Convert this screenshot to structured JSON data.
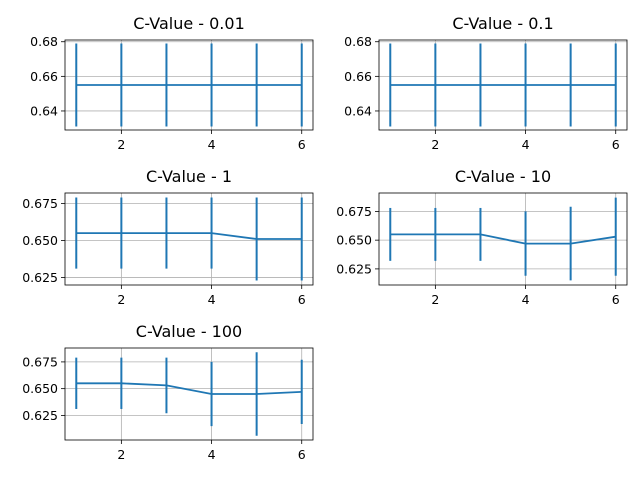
{
  "chart_data": [
    {
      "type": "line",
      "title": "C-Value - 0.01",
      "xlabel": "",
      "ylabel": "",
      "x": [
        1,
        2,
        3,
        4,
        5,
        6
      ],
      "series": [
        {
          "values": [
            0.655,
            0.655,
            0.655,
            0.655,
            0.655,
            0.655
          ],
          "error": [
            0.024,
            0.024,
            0.024,
            0.024,
            0.024,
            0.024
          ]
        }
      ],
      "xlim": [
        0.75,
        6.25
      ],
      "ylim": [
        0.629,
        0.681
      ],
      "xticks": [
        2,
        4,
        6
      ],
      "yticks": [
        0.64,
        0.66,
        0.68
      ],
      "xtick_labels": [
        "2",
        "4",
        "6"
      ],
      "ytick_labels": [
        "0.64",
        "0.66",
        "0.68"
      ],
      "grid": true,
      "color": "#1f77b4"
    },
    {
      "type": "line",
      "title": "C-Value - 0.1",
      "xlabel": "",
      "ylabel": "",
      "x": [
        1,
        2,
        3,
        4,
        5,
        6
      ],
      "series": [
        {
          "values": [
            0.655,
            0.655,
            0.655,
            0.655,
            0.655,
            0.655
          ],
          "error": [
            0.024,
            0.024,
            0.024,
            0.024,
            0.024,
            0.024
          ]
        }
      ],
      "xlim": [
        0.75,
        6.25
      ],
      "ylim": [
        0.629,
        0.681
      ],
      "xticks": [
        2,
        4,
        6
      ],
      "yticks": [
        0.64,
        0.66,
        0.68
      ],
      "xtick_labels": [
        "2",
        "4",
        "6"
      ],
      "ytick_labels": [
        "0.64",
        "0.66",
        "0.68"
      ],
      "grid": true,
      "color": "#1f77b4"
    },
    {
      "type": "line",
      "title": "C-Value - 1",
      "xlabel": "",
      "ylabel": "",
      "x": [
        1,
        2,
        3,
        4,
        5,
        6
      ],
      "series": [
        {
          "values": [
            0.655,
            0.655,
            0.655,
            0.655,
            0.651,
            0.651
          ],
          "error": [
            0.024,
            0.024,
            0.024,
            0.024,
            0.028,
            0.028
          ]
        }
      ],
      "xlim": [
        0.75,
        6.25
      ],
      "ylim": [
        0.62,
        0.682
      ],
      "xticks": [
        2,
        4,
        6
      ],
      "yticks": [
        0.625,
        0.65,
        0.675
      ],
      "xtick_labels": [
        "2",
        "4",
        "6"
      ],
      "ytick_labels": [
        "0.625",
        "0.650",
        "0.675"
      ],
      "grid": true,
      "color": "#1f77b4"
    },
    {
      "type": "line",
      "title": "C-Value - 10",
      "xlabel": "",
      "ylabel": "",
      "x": [
        1,
        2,
        3,
        4,
        5,
        6
      ],
      "series": [
        {
          "values": [
            0.655,
            0.655,
            0.655,
            0.647,
            0.647,
            0.653
          ],
          "error": [
            0.023,
            0.023,
            0.023,
            0.028,
            0.032,
            0.034
          ]
        }
      ],
      "xlim": [
        0.75,
        6.25
      ],
      "ylim": [
        0.611,
        0.691
      ],
      "xticks": [
        2,
        4,
        6
      ],
      "yticks": [
        0.625,
        0.65,
        0.675
      ],
      "xtick_labels": [
        "2",
        "4",
        "6"
      ],
      "ytick_labels": [
        "0.625",
        "0.650",
        "0.675"
      ],
      "grid": true,
      "color": "#1f77b4"
    },
    {
      "type": "line",
      "title": "C-Value - 100",
      "xlabel": "",
      "ylabel": "",
      "x": [
        1,
        2,
        3,
        4,
        5,
        6
      ],
      "series": [
        {
          "values": [
            0.655,
            0.655,
            0.653,
            0.645,
            0.645,
            0.647
          ],
          "error": [
            0.024,
            0.024,
            0.026,
            0.03,
            0.039,
            0.03
          ]
        }
      ],
      "xlim": [
        0.75,
        6.25
      ],
      "ylim": [
        0.602,
        0.688
      ],
      "xticks": [
        2,
        4,
        6
      ],
      "yticks": [
        0.625,
        0.65,
        0.675
      ],
      "xtick_labels": [
        "2",
        "4",
        "6"
      ],
      "ytick_labels": [
        "0.625",
        "0.650",
        "0.675"
      ],
      "grid": true,
      "color": "#1f77b4"
    }
  ]
}
